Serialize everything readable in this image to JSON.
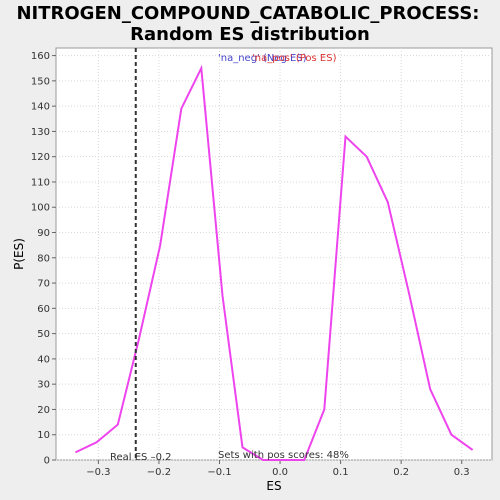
{
  "chart_data": {
    "type": "line",
    "title_line1": "NITROGEN_COMPOUND_CATABOLIC_PROCESS:",
    "title_line2": "Random ES distribution",
    "xlabel": "ES",
    "ylabel": "P(ES)",
    "xlim": [
      -0.37,
      0.35
    ],
    "ylim": [
      0,
      163
    ],
    "x_ticks": [
      -0.3,
      -0.2,
      -0.1,
      0.0,
      0.1,
      0.2,
      0.3
    ],
    "x_tick_labels": [
      "−0.3",
      "−0.2",
      "−0.1",
      "0.0",
      "0.1",
      "0.2",
      "0.3"
    ],
    "y_ticks": [
      0,
      10,
      20,
      30,
      40,
      50,
      60,
      70,
      80,
      90,
      100,
      110,
      120,
      130,
      140,
      150,
      160
    ],
    "grid": true,
    "series": [
      {
        "color": "#ee44ee",
        "points": [
          [
            -0.338,
            3
          ],
          [
            -0.303,
            7
          ],
          [
            -0.268,
            14
          ],
          [
            -0.233,
            48
          ],
          [
            -0.198,
            85
          ],
          [
            -0.163,
            139
          ],
          [
            -0.13,
            155
          ],
          [
            -0.095,
            65
          ],
          [
            -0.062,
            5
          ],
          [
            -0.028,
            0
          ],
          [
            0.007,
            0
          ],
          [
            0.04,
            0
          ],
          [
            0.073,
            20
          ],
          [
            0.108,
            128
          ],
          [
            0.143,
            120
          ],
          [
            0.178,
            102
          ],
          [
            0.213,
            66
          ],
          [
            0.248,
            28
          ],
          [
            0.283,
            10
          ],
          [
            0.318,
            4
          ]
        ]
      }
    ],
    "real_es": -0.2383,
    "real_es_label": "Real ES –0.2",
    "pos_scores_label": "Sets with pos scores: 48%",
    "legend": {
      "neg": "'na_neg' (Neg ES)",
      "pos": "'na_pos' (Pos ES)",
      "neg_color": "#4444cc",
      "pos_color": "#dd3333",
      "placement": "top-center"
    }
  }
}
